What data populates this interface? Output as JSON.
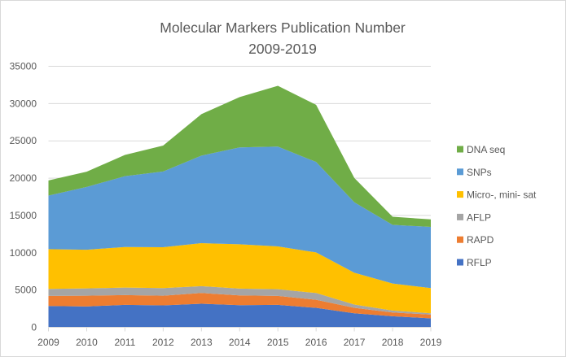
{
  "chart_data": {
    "type": "area",
    "stacked": true,
    "title": "Molecular Markers Publication Number",
    "subtitle": "2009-2019",
    "xlabel": "",
    "ylabel": "",
    "x": [
      "2009",
      "2010",
      "2011",
      "2012",
      "2013",
      "2014",
      "2015",
      "2016",
      "2017",
      "2018",
      "2019"
    ],
    "ylim": [
      0,
      35000
    ],
    "yticks": [
      0,
      5000,
      10000,
      15000,
      20000,
      25000,
      30000,
      35000
    ],
    "ytick_labels": [
      "0",
      "5000",
      "10000",
      "15000",
      "20000",
      "25000",
      "30000",
      "35000"
    ],
    "grid": true,
    "legend_position": "right",
    "series": [
      {
        "name": "RFLP",
        "color": "#4472C4",
        "values": [
          2860,
          2800,
          3010,
          2940,
          3160,
          2970,
          3010,
          2610,
          1880,
          1490,
          1200
        ]
      },
      {
        "name": "RAPD",
        "color": "#ED7D31",
        "values": [
          1350,
          1440,
          1310,
          1300,
          1440,
          1310,
          1200,
          1090,
          730,
          500,
          510
        ]
      },
      {
        "name": "AFLP",
        "color": "#A5A5A5",
        "values": [
          940,
          980,
          1010,
          1020,
          920,
          910,
          900,
          900,
          440,
          260,
          170
        ]
      },
      {
        "name": "Micro-, mini- sat",
        "color": "#FFC000",
        "values": [
          5330,
          5180,
          5440,
          5480,
          5760,
          5940,
          5740,
          5440,
          4270,
          3630,
          3380
        ]
      },
      {
        "name": "SNPs",
        "color": "#5B9BD5",
        "values": [
          7180,
          8420,
          9500,
          10160,
          11740,
          12990,
          13380,
          12130,
          9440,
          7860,
          8200
        ]
      },
      {
        "name": "DNA seq",
        "color": "#70AD47",
        "values": [
          2040,
          2050,
          2840,
          3470,
          5560,
          6750,
          8160,
          7660,
          3260,
          1090,
          1010
        ]
      }
    ],
    "legend_order": [
      "DNA seq",
      "SNPs",
      "Micro-, mini- sat",
      "AFLP",
      "RAPD",
      "RFLP"
    ]
  }
}
